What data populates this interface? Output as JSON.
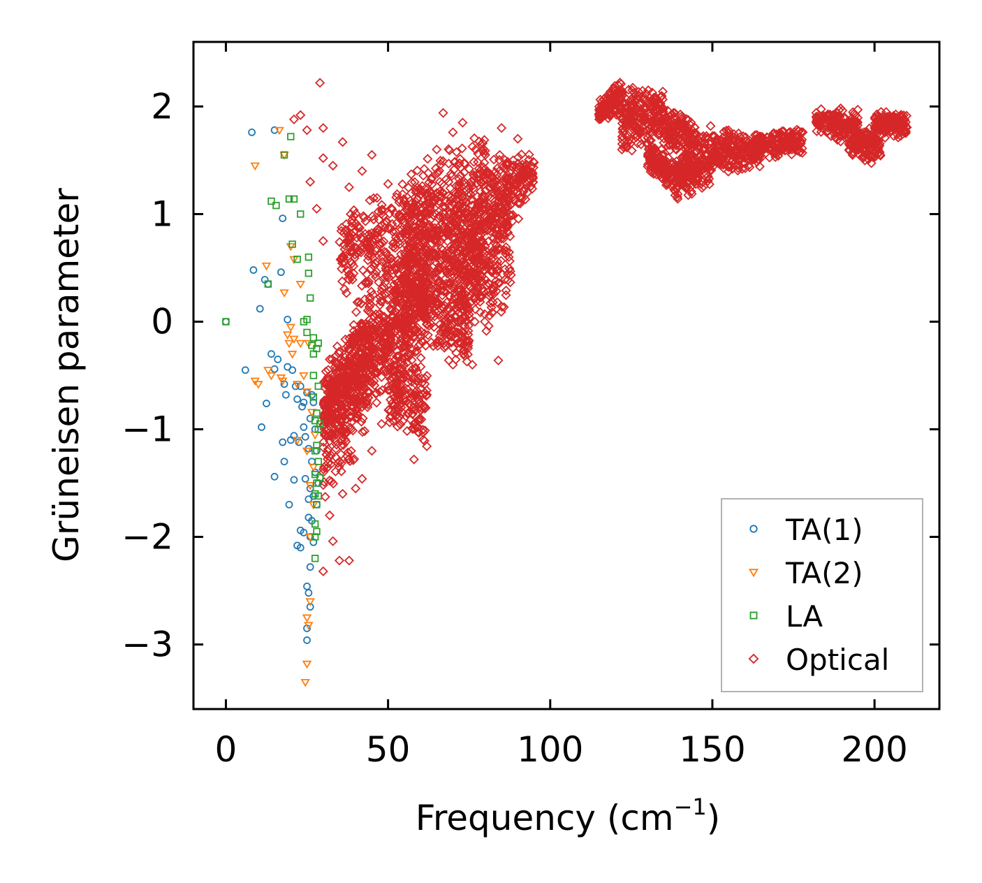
{
  "chart_data": {
    "type": "scatter",
    "xlabel": "Frequency (cm",
    "xlabel_sup": "−1",
    "xlabel_end": ")",
    "ylabel": "Grüneisen parameter",
    "xlim": [
      -10,
      220
    ],
    "ylim": [
      -3.6,
      2.6
    ],
    "xticks": [
      0,
      50,
      100,
      150,
      200
    ],
    "yticks": [
      2,
      1,
      0,
      -1,
      -2,
      -3
    ],
    "xtick_labels": [
      "0",
      "50",
      "100",
      "150",
      "200"
    ],
    "ytick_labels": [
      "2",
      "1",
      "0",
      "−1",
      "−2",
      "−3"
    ],
    "legend_position": "lower-right",
    "series": [
      {
        "name": "TA(1)",
        "marker": "circle",
        "color": "#1f77b4",
        "points": [
          [
            0,
            0
          ],
          [
            6,
            -0.45
          ],
          [
            8,
            1.76
          ],
          [
            8.5,
            0.48
          ],
          [
            10.5,
            0.12
          ],
          [
            11,
            -0.98
          ],
          [
            12,
            0.39
          ],
          [
            12.5,
            -0.76
          ],
          [
            13,
            0.35
          ],
          [
            14,
            -0.3
          ],
          [
            15,
            -1.44
          ],
          [
            15,
            -0.44
          ],
          [
            15,
            1.78
          ],
          [
            16,
            -0.35
          ],
          [
            17,
            0.46
          ],
          [
            17.5,
            0.96
          ],
          [
            17.5,
            -1.12
          ],
          [
            18,
            -1.3
          ],
          [
            18,
            -0.58
          ],
          [
            18.5,
            -0.68
          ],
          [
            19,
            0.02
          ],
          [
            19,
            -0.42
          ],
          [
            19.5,
            -1.7
          ],
          [
            20,
            -1.1
          ],
          [
            20.5,
            -0.45
          ],
          [
            21,
            -1.06
          ],
          [
            21,
            -1.47
          ],
          [
            21.5,
            -0.6
          ],
          [
            22,
            -0.72
          ],
          [
            22,
            -2.08
          ],
          [
            22.5,
            -1.12
          ],
          [
            23,
            -2.1
          ],
          [
            23,
            -1.94
          ],
          [
            23,
            -0.6
          ],
          [
            23.5,
            -0.79
          ],
          [
            24,
            -1.96
          ],
          [
            24,
            -0.98
          ],
          [
            24,
            -0.75
          ],
          [
            24.5,
            -1.07
          ],
          [
            24.5,
            -1.46
          ],
          [
            25,
            -0.66
          ],
          [
            25,
            -2.46
          ],
          [
            25,
            -2.85
          ],
          [
            25,
            -2.96
          ],
          [
            25.5,
            -1.18
          ],
          [
            25.5,
            -1.65
          ],
          [
            25.5,
            -1.82
          ],
          [
            25.5,
            -2.52
          ],
          [
            26,
            -0.9
          ],
          [
            26,
            -1.55
          ],
          [
            26,
            -2.0
          ],
          [
            26,
            -2.28
          ],
          [
            26,
            -2.65
          ],
          [
            26.5,
            -0.68
          ],
          [
            26.5,
            -1.3
          ],
          [
            26.5,
            -1.85
          ],
          [
            27,
            -0.75
          ],
          [
            27,
            -1.62
          ],
          [
            27,
            -2.05
          ],
          [
            27.5,
            -1.0
          ],
          [
            27.5,
            -1.4
          ],
          [
            28,
            -1.7
          ],
          [
            28,
            -1.2
          ],
          [
            28.5,
            -1.5
          ]
        ]
      },
      {
        "name": "TA(2)",
        "marker": "triangle-down",
        "color": "#ff7f0e",
        "points": [
          [
            9,
            1.45
          ],
          [
            9,
            -0.55
          ],
          [
            10,
            -0.58
          ],
          [
            12.5,
            0.52
          ],
          [
            13,
            -0.45
          ],
          [
            14,
            -0.5
          ],
          [
            16.5,
            1.78
          ],
          [
            17,
            -0.52
          ],
          [
            17.5,
            -0.55
          ],
          [
            18,
            0.27
          ],
          [
            18,
            1.55
          ],
          [
            19,
            -0.12
          ],
          [
            19.5,
            -0.2
          ],
          [
            20,
            0.7
          ],
          [
            20,
            -0.05
          ],
          [
            20.5,
            -0.3
          ],
          [
            21,
            -0.16
          ],
          [
            21,
            0.58
          ],
          [
            22,
            -0.58
          ],
          [
            22,
            -1.1
          ],
          [
            23,
            -0.2
          ],
          [
            23,
            0.35
          ],
          [
            24,
            -0.5
          ],
          [
            24.5,
            -3.35
          ],
          [
            25,
            -3.18
          ],
          [
            25,
            -2.75
          ],
          [
            25,
            -1.2
          ],
          [
            25,
            -0.65
          ],
          [
            25.5,
            -2.82
          ],
          [
            25.5,
            -0.2
          ],
          [
            26,
            -2.6
          ],
          [
            26,
            -2.0
          ],
          [
            26,
            -1.52
          ],
          [
            26.5,
            -0.84
          ],
          [
            27,
            -1.35
          ],
          [
            27,
            -1.7
          ],
          [
            27.5,
            -1.05
          ]
        ]
      },
      {
        "name": "LA",
        "marker": "square",
        "color": "#2ca02c",
        "points": [
          [
            0,
            0
          ],
          [
            13,
            0.35
          ],
          [
            14,
            1.12
          ],
          [
            15.5,
            1.08
          ],
          [
            18,
            1.55
          ],
          [
            19.5,
            1.14
          ],
          [
            20,
            1.72
          ],
          [
            20.5,
            0.72
          ],
          [
            21,
            1.14
          ],
          [
            22,
            0.58
          ],
          [
            23,
            1.0
          ],
          [
            24,
            0.0
          ],
          [
            25,
            0.02
          ],
          [
            25,
            -0.1
          ],
          [
            25.5,
            0.6
          ],
          [
            25.5,
            0.45
          ],
          [
            26,
            0.22
          ],
          [
            26.5,
            -0.22
          ],
          [
            27,
            -0.15
          ],
          [
            27,
            -0.3
          ],
          [
            27,
            -0.5
          ],
          [
            27,
            -0.7
          ],
          [
            27.5,
            -0.92
          ],
          [
            27.5,
            -1.2
          ],
          [
            27.5,
            -1.42
          ],
          [
            27.5,
            -1.6
          ],
          [
            27.5,
            -1.88
          ],
          [
            27.5,
            -2.0
          ],
          [
            27.5,
            -2.2
          ],
          [
            28,
            -0.25
          ],
          [
            28,
            -0.85
          ],
          [
            28,
            -1.15
          ],
          [
            28,
            -1.5
          ],
          [
            28,
            -1.7
          ],
          [
            28,
            -1.95
          ],
          [
            28.5,
            -0.2
          ],
          [
            28.5,
            -0.6
          ],
          [
            28.5,
            -1.0
          ],
          [
            28.5,
            -1.3
          ],
          [
            28.5,
            -1.62
          ],
          [
            29,
            -0.95
          ],
          [
            29,
            -1.45
          ]
        ]
      },
      {
        "name": "Optical",
        "marker": "diamond",
        "color": "#d62728",
        "points": [
          [
            21,
            1.88
          ],
          [
            23,
            1.92
          ],
          [
            25,
            1.78
          ],
          [
            29,
            2.22
          ],
          [
            30,
            1.8
          ],
          [
            30,
            1.52
          ],
          [
            33,
            1.45
          ],
          [
            36,
            1.67
          ],
          [
            38,
            1.25
          ],
          [
            42,
            1.4
          ],
          [
            45,
            1.55
          ],
          [
            50,
            1.28
          ],
          [
            55,
            1.12
          ],
          [
            60,
            1.18
          ],
          [
            65,
            1.6
          ],
          [
            67,
            1.94
          ],
          [
            70,
            1.76
          ],
          [
            73,
            1.85
          ],
          [
            77,
            1.6
          ],
          [
            80,
            1.55
          ],
          [
            85,
            1.8
          ],
          [
            90,
            1.7
          ],
          [
            95,
            1.48
          ],
          [
            84,
            -0.36
          ],
          [
            70,
            -0.4
          ],
          [
            76,
            -0.4
          ],
          [
            58,
            -1.28
          ],
          [
            35,
            -2.22
          ],
          [
            38,
            -2.22
          ],
          [
            30,
            -2.32
          ],
          [
            33,
            -2.04
          ],
          [
            40,
            -1.55
          ],
          [
            42,
            -1.46
          ],
          [
            45,
            -1.2
          ],
          [
            48,
            -0.95
          ],
          [
            32,
            -1.8
          ],
          [
            36,
            -1.6
          ],
          [
            30,
            -1.4
          ],
          [
            31,
            -0.9
          ],
          [
            32,
            -0.35
          ],
          [
            30,
            0.75
          ],
          [
            26,
            1.3
          ],
          [
            28,
            1.05
          ]
        ],
        "clusters": [
          {
            "x": [
              30,
              62
            ],
            "y_at_x0": [
              -1.2,
              -0.4
            ],
            "y_at_x1": [
              -0.4,
              1.0
            ],
            "density": 800
          },
          {
            "x": [
              30,
              45
            ],
            "y_at_x0": [
              -2.0,
              -0.6
            ],
            "y_at_x1": [
              -1.0,
              0.6
            ],
            "density": 220
          },
          {
            "x": [
              35,
              55
            ],
            "y_at_x0": [
              0.2,
              1.0
            ],
            "y_at_x1": [
              0.3,
              1.4
            ],
            "density": 220
          },
          {
            "x": [
              50,
              62
            ],
            "y_at_x0": [
              -1.0,
              -0.2
            ],
            "y_at_x1": [
              -1.2,
              -0.4
            ],
            "density": 160
          },
          {
            "x": [
              55,
              80
            ],
            "y_at_x0": [
              0.0,
              1.4
            ],
            "y_at_x1": [
              0.2,
              1.9
            ],
            "density": 650
          },
          {
            "x": [
              70,
              88
            ],
            "y_at_x0": [
              -0.1,
              1.0
            ],
            "y_at_x1": [
              -0.1,
              1.3
            ],
            "density": 280
          },
          {
            "x": [
              80,
              95
            ],
            "y_at_x0": [
              0.4,
              1.6
            ],
            "y_at_x1": [
              1.2,
              1.6
            ],
            "density": 220
          },
          {
            "x": [
              60,
              75
            ],
            "y_at_x0": [
              -0.2,
              0.6
            ],
            "y_at_x1": [
              -0.5,
              0.2
            ],
            "density": 180
          },
          {
            "x": [
              115,
              122
            ],
            "y_at_x0": [
              1.85,
              2.05
            ],
            "y_at_x1": [
              1.9,
              2.3
            ],
            "density": 120
          },
          {
            "x": [
              122,
              135
            ],
            "y_at_x0": [
              1.5,
              2.2
            ],
            "y_at_x1": [
              1.7,
              2.2
            ],
            "density": 220
          },
          {
            "x": [
              130,
              140
            ],
            "y_at_x0": [
              1.35,
              1.75
            ],
            "y_at_x1": [
              1.1,
              1.5
            ],
            "density": 160
          },
          {
            "x": [
              135,
              145
            ],
            "y_at_x0": [
              1.55,
              2.0
            ],
            "y_at_x1": [
              1.55,
              1.95
            ],
            "density": 140
          },
          {
            "x": [
              140,
              150
            ],
            "y_at_x0": [
              1.15,
              1.6
            ],
            "y_at_x1": [
              1.15,
              1.9
            ],
            "density": 180
          },
          {
            "x": [
              150,
              165
            ],
            "y_at_x0": [
              1.35,
              1.85
            ],
            "y_at_x1": [
              1.4,
              1.75
            ],
            "density": 220
          },
          {
            "x": [
              163,
              178
            ],
            "y_at_x0": [
              1.5,
              1.75
            ],
            "y_at_x1": [
              1.55,
              1.85
            ],
            "density": 160
          },
          {
            "x": [
              182,
              195
            ],
            "y_at_x0": [
              1.75,
              2.0
            ],
            "y_at_x1": [
              1.6,
              2.0
            ],
            "density": 160
          },
          {
            "x": [
              192,
              202
            ],
            "y_at_x0": [
              1.5,
              1.9
            ],
            "y_at_x1": [
              1.45,
              1.75
            ],
            "density": 140
          },
          {
            "x": [
              200,
              210
            ],
            "y_at_x0": [
              1.7,
              1.97
            ],
            "y_at_x1": [
              1.7,
              1.95
            ],
            "density": 150
          }
        ]
      }
    ]
  }
}
